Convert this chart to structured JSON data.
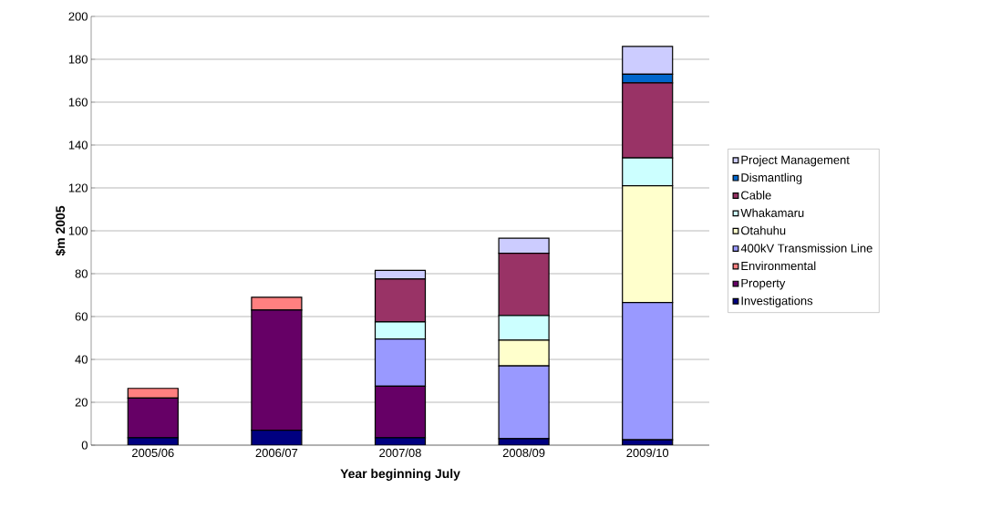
{
  "chart_data": {
    "type": "bar",
    "stacked": true,
    "xlabel": "Year beginning July",
    "ylabel": "$m 2005",
    "categories": [
      "2005/06",
      "2006/07",
      "2007/08",
      "2008/09",
      "2009/10"
    ],
    "series": [
      {
        "name": "Investigations",
        "color": "#000080",
        "values": [
          3.5,
          7,
          3.5,
          3,
          2.5
        ]
      },
      {
        "name": "Property",
        "color": "#660066",
        "values": [
          18.5,
          56,
          24,
          null,
          null
        ]
      },
      {
        "name": "Environmental",
        "color": "#ff8080",
        "values": [
          4.5,
          6,
          null,
          null,
          null
        ]
      },
      {
        "name": "400kV Transmission Line",
        "color": "#9999ff",
        "values": [
          null,
          null,
          22,
          34,
          64
        ]
      },
      {
        "name": "Otahuhu",
        "color": "#ffffcc",
        "values": [
          null,
          null,
          null,
          12,
          54.5
        ]
      },
      {
        "name": "Whakamaru",
        "color": "#ccffff",
        "values": [
          null,
          null,
          8,
          11.5,
          13
        ]
      },
      {
        "name": "Cable",
        "color": "#993366",
        "values": [
          null,
          null,
          20,
          29,
          35
        ]
      },
      {
        "name": "Dismantling",
        "color": "#0066cc",
        "values": [
          null,
          null,
          null,
          null,
          4
        ]
      },
      {
        "name": "Project Management",
        "color": "#ccccff",
        "values": [
          null,
          null,
          4,
          7,
          13
        ]
      }
    ],
    "ylim": [
      0,
      200
    ],
    "yticks": [
      0,
      20,
      40,
      60,
      80,
      100,
      120,
      140,
      160,
      180,
      200
    ],
    "grid": "y",
    "legend": "right"
  }
}
